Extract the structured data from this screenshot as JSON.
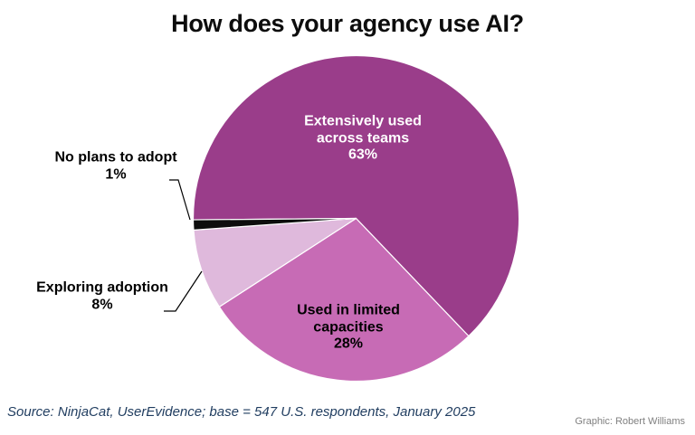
{
  "title": "How does your agency use AI?",
  "source_note": "Source: NinjaCat, UserEvidence; base = 547 U.S. respondents, January 2025",
  "credit": "Graphic: Robert Williams",
  "colors": {
    "slice_dark": "#9a3d8a",
    "slice_medium": "#c76bb5",
    "slice_pale": "#dfb9dc",
    "slice_black": "#0d0d0d",
    "slice_separator": "#ffffff",
    "leader_line": "#000000",
    "source_text": "#1f3c5f",
    "credit_text": "#808080"
  },
  "chart_data": {
    "type": "pie",
    "title": "How does your agency use AI?",
    "start_angle_deg": 269.5,
    "direction": "clockwise",
    "legend": "none",
    "slices": [
      {
        "label": "Extensively used across teams",
        "value": 63,
        "pct_label": "63%",
        "color": "#9a3d8a",
        "label_placement": "inside",
        "label_color": "#ffffff",
        "label_lines": [
          "Extensively used",
          "across teams",
          "63%"
        ]
      },
      {
        "label": "Used in limited capacities",
        "value": 28,
        "pct_label": "28%",
        "color": "#c76bb5",
        "label_placement": "inside",
        "label_color": "#000000",
        "label_lines": [
          "Used in limited",
          "capacities",
          "28%"
        ]
      },
      {
        "label": "Exploring adoption",
        "value": 8,
        "pct_label": "8%",
        "color": "#dfb9dc",
        "label_placement": "outside",
        "label_color": "#000000",
        "label_lines": [
          "Exploring adoption",
          "8%"
        ]
      },
      {
        "label": "No plans to adopt",
        "value": 1,
        "pct_label": "1%",
        "color": "#0d0d0d",
        "label_placement": "outside",
        "label_color": "#000000",
        "label_lines": [
          "No plans to adopt",
          "1%"
        ]
      }
    ]
  }
}
